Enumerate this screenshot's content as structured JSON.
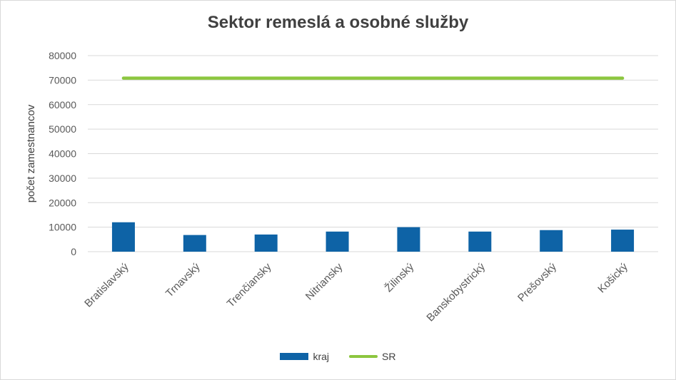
{
  "chart_data": {
    "type": "bar",
    "title": "Sektor remeslá a osobné služby",
    "xlabel": "",
    "ylabel": "počet zamestnancov",
    "ylim": [
      0,
      80000
    ],
    "yticks": [
      0,
      10000,
      20000,
      30000,
      40000,
      50000,
      60000,
      70000,
      80000
    ],
    "grid": true,
    "legend_position": "bottom",
    "categories": [
      "Bratislavský",
      "Trnavský",
      "Trenčiansky",
      "Nitriansky",
      "Žilinský",
      "Banskobystrický",
      "Prešovský",
      "Košický"
    ],
    "series": [
      {
        "name": "kraj",
        "type": "bar",
        "color": "#0e63a6",
        "values": [
          12000,
          6800,
          7000,
          8200,
          10000,
          8200,
          8800,
          9000
        ]
      },
      {
        "name": "SR",
        "type": "line",
        "color": "#8cc63f",
        "values": [
          70800,
          70800,
          70800,
          70800,
          70800,
          70800,
          70800,
          70800
        ]
      }
    ]
  }
}
